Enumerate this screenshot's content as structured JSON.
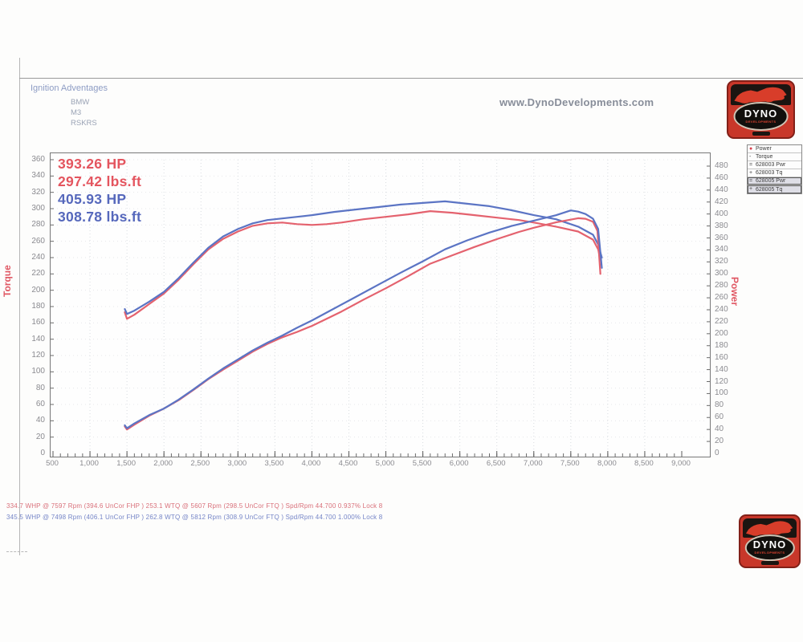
{
  "header": {
    "site_url": "www.DynoDevelopments.com",
    "run_title": "Ignition Adventages",
    "run_details": [
      "BMW",
      "M3",
      "RSKRS"
    ]
  },
  "logo": {
    "name": "DYNO",
    "sub": "DEVELOPMENTS"
  },
  "stats": [
    {
      "text": "393.26 HP",
      "color": "#e4555f"
    },
    {
      "text": "297.42 lbs.ft",
      "color": "#e4555f"
    },
    {
      "text": "405.93 HP",
      "color": "#5668bc"
    },
    {
      "text": "308.78 lbs.ft",
      "color": "#5668bc"
    }
  ],
  "legend": {
    "items": [
      {
        "marker": "●",
        "marker_color": "#d9414e",
        "label": "Power",
        "highlight": false
      },
      {
        "marker": "-",
        "marker_color": "#444444",
        "label": "Torque",
        "highlight": false
      },
      {
        "marker": "=",
        "marker_color": "#444444",
        "label": "628003 Pwr",
        "highlight": false
      },
      {
        "marker": "+",
        "marker_color": "#444444",
        "label": "628003 Tq",
        "highlight": false
      },
      {
        "marker": "=",
        "marker_color": "#444444",
        "label": "628005 Pwr",
        "highlight": true
      },
      {
        "marker": "+",
        "marker_color": "#444444",
        "label": "628005 Tq",
        "highlight": true
      }
    ]
  },
  "footer": {
    "lines": [
      {
        "text": "334.7 WHP @ 7597 Rpm (394.6 UnCor FHP )  253.1 WTQ @ 5607 Rpm (298.5 UnCor FTQ ) Spd/Rpm 44.700 0.937% Lock 8",
        "color": "#d9707a"
      },
      {
        "text": "345.5 WHP @ 7498 Rpm (406.1 UnCor FHP )  262.8 WTQ @ 5812 Rpm (308.9 UnCor FTQ ) Spd/Rpm 44.700 1.000% Lock 8",
        "color": "#7585c7"
      }
    ]
  },
  "chart_data": {
    "type": "line",
    "left_axis": {
      "title": "Torque",
      "min": 0,
      "max": 360,
      "step": 20
    },
    "right_axis": {
      "title": "Power",
      "min": 0,
      "max": 480,
      "step": 20
    },
    "x_axis": {
      "min": 500,
      "max": 9000,
      "step": 500,
      "tick_labels": [
        "500",
        "1,000",
        "1,500",
        "2,000",
        "2,500",
        "3,000",
        "3,500",
        "4,000",
        "4,500",
        "5,000",
        "5,500",
        "6,000",
        "6,500",
        "7,000",
        "7,500",
        "8,000",
        "8,500",
        "9,000"
      ]
    },
    "grid": true,
    "legend_position": "top-right-outside",
    "series": [
      {
        "name": "628003 Tq",
        "axis": "torque",
        "color": "#e4626e",
        "points": [
          [
            1470,
            173
          ],
          [
            1500,
            165
          ],
          [
            1600,
            170
          ],
          [
            1800,
            183
          ],
          [
            2000,
            196
          ],
          [
            2200,
            213
          ],
          [
            2400,
            232
          ],
          [
            2600,
            250
          ],
          [
            2800,
            263
          ],
          [
            3000,
            272
          ],
          [
            3200,
            279
          ],
          [
            3400,
            282
          ],
          [
            3600,
            283
          ],
          [
            3800,
            281
          ],
          [
            4000,
            280
          ],
          [
            4200,
            281
          ],
          [
            4400,
            283
          ],
          [
            4700,
            287
          ],
          [
            5000,
            290
          ],
          [
            5300,
            293
          ],
          [
            5600,
            297
          ],
          [
            5900,
            295
          ],
          [
            6200,
            292
          ],
          [
            6500,
            289
          ],
          [
            6800,
            286
          ],
          [
            7000,
            283
          ],
          [
            7300,
            278
          ],
          [
            7600,
            272
          ],
          [
            7800,
            262
          ],
          [
            7870,
            250
          ],
          [
            7900,
            238
          ]
        ]
      },
      {
        "name": "628005 Tq",
        "axis": "torque",
        "color": "#5b74c4",
        "points": [
          [
            1470,
            177
          ],
          [
            1500,
            171
          ],
          [
            1600,
            175
          ],
          [
            1800,
            186
          ],
          [
            2000,
            198
          ],
          [
            2200,
            215
          ],
          [
            2400,
            234
          ],
          [
            2600,
            252
          ],
          [
            2800,
            266
          ],
          [
            3000,
            275
          ],
          [
            3200,
            282
          ],
          [
            3400,
            286
          ],
          [
            3600,
            288
          ],
          [
            3800,
            290
          ],
          [
            4000,
            292
          ],
          [
            4300,
            296
          ],
          [
            4600,
            299
          ],
          [
            4900,
            302
          ],
          [
            5200,
            305
          ],
          [
            5500,
            307
          ],
          [
            5800,
            309
          ],
          [
            6100,
            306
          ],
          [
            6400,
            303
          ],
          [
            6700,
            298
          ],
          [
            7000,
            292
          ],
          [
            7300,
            287
          ],
          [
            7600,
            278
          ],
          [
            7800,
            268
          ],
          [
            7870,
            256
          ],
          [
            7920,
            240
          ]
        ]
      },
      {
        "name": "628003 Pwr",
        "axis": "power",
        "color": "#e4626e",
        "points": [
          [
            1470,
            45
          ],
          [
            1500,
            40
          ],
          [
            1600,
            48
          ],
          [
            1800,
            63
          ],
          [
            2000,
            75
          ],
          [
            2200,
            89
          ],
          [
            2400,
            106
          ],
          [
            2600,
            124
          ],
          [
            2800,
            140
          ],
          [
            3000,
            155
          ],
          [
            3200,
            170
          ],
          [
            3400,
            183
          ],
          [
            3600,
            194
          ],
          [
            3800,
            203
          ],
          [
            4000,
            213
          ],
          [
            4200,
            225
          ],
          [
            4400,
            237
          ],
          [
            4700,
            257
          ],
          [
            5000,
            276
          ],
          [
            5300,
            296
          ],
          [
            5600,
            317
          ],
          [
            5900,
            331
          ],
          [
            6200,
            345
          ],
          [
            6500,
            358
          ],
          [
            6800,
            370
          ],
          [
            7000,
            377
          ],
          [
            7300,
            386
          ],
          [
            7600,
            393
          ],
          [
            7700,
            392
          ],
          [
            7800,
            387
          ],
          [
            7860,
            372
          ],
          [
            7900,
            300
          ]
        ]
      },
      {
        "name": "628005 Pwr",
        "axis": "power",
        "color": "#5b74c4",
        "points": [
          [
            1470,
            47
          ],
          [
            1500,
            42
          ],
          [
            1600,
            50
          ],
          [
            1800,
            64
          ],
          [
            2000,
            75
          ],
          [
            2200,
            90
          ],
          [
            2400,
            107
          ],
          [
            2600,
            125
          ],
          [
            2800,
            142
          ],
          [
            3000,
            157
          ],
          [
            3200,
            172
          ],
          [
            3400,
            185
          ],
          [
            3600,
            197
          ],
          [
            3800,
            210
          ],
          [
            4000,
            222
          ],
          [
            4300,
            242
          ],
          [
            4600,
            262
          ],
          [
            4900,
            282
          ],
          [
            5200,
            302
          ],
          [
            5500,
            321
          ],
          [
            5800,
            341
          ],
          [
            6100,
            356
          ],
          [
            6400,
            369
          ],
          [
            6700,
            380
          ],
          [
            7000,
            389
          ],
          [
            7300,
            398
          ],
          [
            7500,
            406
          ],
          [
            7600,
            404
          ],
          [
            7700,
            400
          ],
          [
            7800,
            392
          ],
          [
            7870,
            375
          ],
          [
            7920,
            310
          ]
        ]
      }
    ],
    "peak_annotations": {
      "red_hp": 393.26,
      "red_tq": 297.42,
      "blue_hp": 405.93,
      "blue_tq": 308.78
    }
  }
}
